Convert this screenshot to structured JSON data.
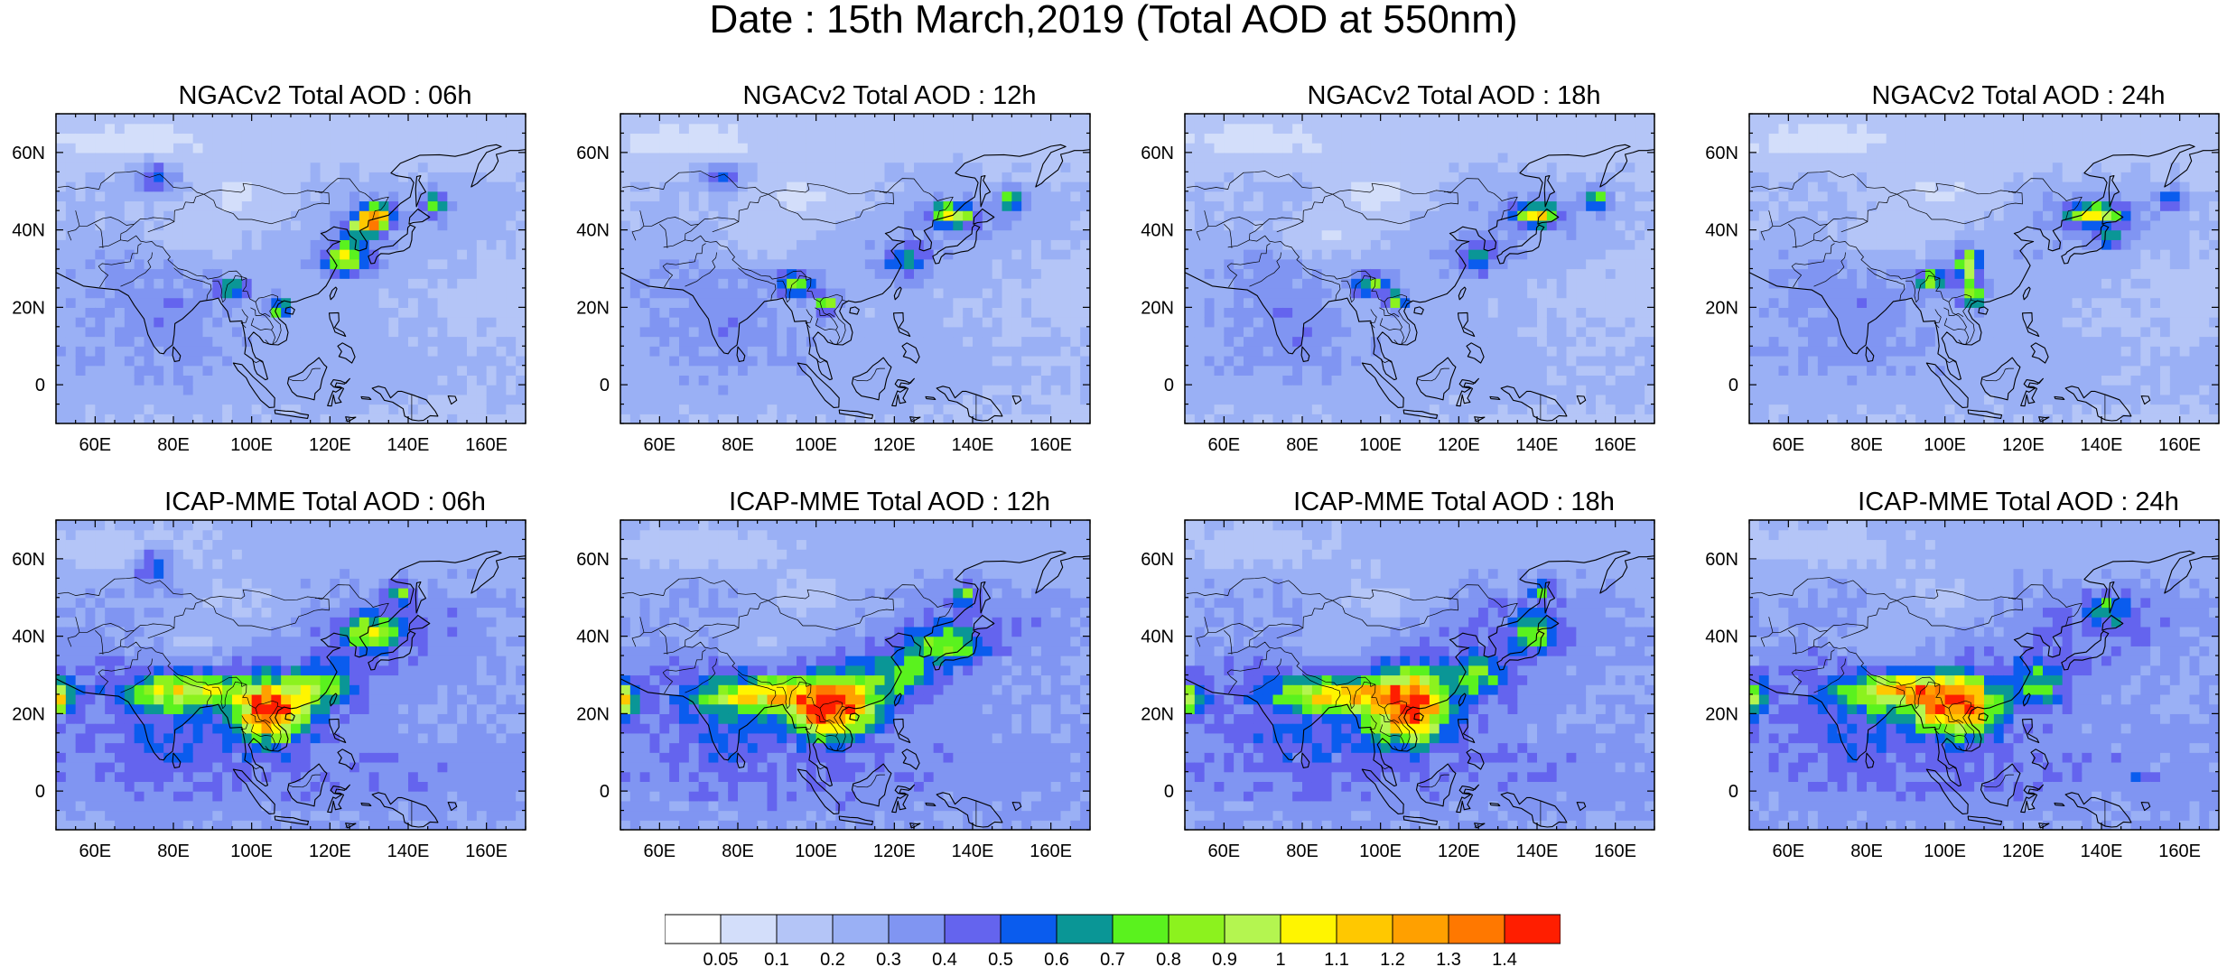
{
  "figure": {
    "title": "Date : 15th March,2019 (Total AOD at 550nm)"
  },
  "panels": [
    {
      "title": "NGACv2 Total AOD : 06h",
      "model": "NGACv2",
      "lead": "06h",
      "hotspots": [
        [
          132,
          44,
          1.05,
          3,
          2
        ],
        [
          129,
          41,
          0.95,
          3,
          2
        ],
        [
          124,
          33,
          0.85,
          4,
          3
        ],
        [
          147,
          47,
          0.75,
          2,
          2
        ],
        [
          107,
          20,
          0.8,
          2,
          2
        ],
        [
          95,
          25,
          0.6,
          3,
          2
        ],
        [
          75,
          54,
          0.5,
          4,
          3
        ]
      ]
    },
    {
      "title": "NGACv2 Total AOD : 12h",
      "model": "NGACv2",
      "lead": "12h",
      "hotspots": [
        [
          135,
          44,
          0.95,
          4,
          2
        ],
        [
          150,
          48,
          0.85,
          2,
          2
        ],
        [
          95,
          26,
          0.85,
          3,
          2
        ],
        [
          103,
          21,
          0.8,
          2,
          2
        ],
        [
          76,
          54,
          0.55,
          4,
          2
        ],
        [
          123,
          32,
          0.55,
          4,
          3
        ]
      ]
    },
    {
      "title": "NGACv2 Total AOD : 18h",
      "model": "NGACv2",
      "lead": "18h",
      "hotspots": [
        [
          140,
          44,
          1.0,
          4,
          2
        ],
        [
          155,
          48,
          0.8,
          2,
          2
        ],
        [
          98,
          26,
          0.8,
          3,
          2
        ],
        [
          104,
          22,
          0.75,
          2,
          2
        ],
        [
          125,
          33,
          0.55,
          4,
          3
        ]
      ]
    },
    {
      "title": "NGACv2 Total AOD : 24h",
      "model": "NGACv2",
      "lead": "24h",
      "hotspots": [
        [
          138,
          44,
          0.9,
          5,
          2
        ],
        [
          106,
          31,
          1.0,
          2,
          3
        ],
        [
          107,
          23,
          0.9,
          2,
          2
        ],
        [
          97,
          27,
          0.8,
          3,
          2
        ],
        [
          142,
          38,
          0.7,
          2,
          2
        ],
        [
          158,
          48,
          0.6,
          2,
          2
        ]
      ]
    },
    {
      "title": "ICAP-MME Total AOD : 06h",
      "model": "ICAP-MME",
      "lead": "06h",
      "hotspots": [
        [
          105,
          21,
          1.4,
          6,
          5
        ],
        [
          84,
          26,
          0.85,
          9,
          3
        ],
        [
          50,
          25,
          1.05,
          3,
          3
        ],
        [
          131,
          41,
          0.8,
          5,
          3
        ],
        [
          138,
          51,
          0.7,
          2,
          2
        ],
        [
          75,
          59,
          0.6,
          3,
          3
        ],
        [
          118,
          27,
          0.6,
          6,
          4
        ]
      ]
    },
    {
      "title": "ICAP-MME Total AOD : 12h",
      "model": "ICAP-MME",
      "lead": "12h",
      "hotspots": [
        [
          104,
          22,
          1.4,
          7,
          5
        ],
        [
          86,
          25,
          0.9,
          9,
          3
        ],
        [
          50,
          24,
          1.0,
          3,
          3
        ],
        [
          133,
          38,
          0.7,
          6,
          3
        ],
        [
          138,
          51,
          0.65,
          2,
          2
        ],
        [
          121,
          30,
          0.6,
          6,
          4
        ]
      ]
    },
    {
      "title": "ICAP-MME Total AOD : 18h",
      "model": "ICAP-MME",
      "lead": "18h",
      "hotspots": [
        [
          107,
          22,
          1.35,
          7,
          6
        ],
        [
          88,
          25,
          0.9,
          9,
          3
        ],
        [
          50,
          24,
          0.9,
          3,
          3
        ],
        [
          139,
          41,
          0.6,
          4,
          3
        ],
        [
          141,
          52,
          0.6,
          2,
          2
        ],
        [
          125,
          30,
          0.6,
          5,
          4
        ]
      ]
    },
    {
      "title": "ICAP-MME Total AOD : 24h",
      "model": "ICAP-MME",
      "lead": "24h",
      "hotspots": [
        [
          103,
          22,
          1.3,
          7,
          5
        ],
        [
          88,
          26,
          0.9,
          9,
          3
        ],
        [
          50,
          24,
          0.8,
          3,
          3
        ],
        [
          142,
          47,
          0.55,
          4,
          3
        ],
        [
          150,
          3,
          0.6,
          1,
          1
        ],
        [
          124,
          28,
          0.55,
          5,
          4
        ]
      ]
    }
  ],
  "axes": {
    "lon_range": [
      50,
      170
    ],
    "lat_range": [
      -10,
      70
    ],
    "lon_ticks": [
      60,
      80,
      100,
      120,
      140,
      160
    ],
    "lon_labels": [
      "60E",
      "80E",
      "100E",
      "120E",
      "140E",
      "160E"
    ],
    "lat_ticks": [
      0,
      20,
      40,
      60
    ],
    "lat_labels": [
      "0",
      "20N",
      "40N",
      "60N"
    ]
  },
  "colorbar": {
    "levels": [
      "0.05",
      "0.1",
      "0.2",
      "0.3",
      "0.4",
      "0.5",
      "0.6",
      "0.7",
      "0.8",
      "0.9",
      "1",
      "1.1",
      "1.2",
      "1.3",
      "1.4"
    ],
    "level_values": [
      0.05,
      0.1,
      0.2,
      0.3,
      0.4,
      0.5,
      0.6,
      0.7,
      0.8,
      0.9,
      1.0,
      1.1,
      1.2,
      1.3,
      1.4
    ],
    "colors": [
      "#ffffff",
      "#d3defa",
      "#b4c5f7",
      "#9ab0f5",
      "#8095f2",
      "#6464ee",
      "#0a5cee",
      "#0a9696",
      "#5af21e",
      "#8cf21e",
      "#b4f550",
      "#fff500",
      "#ffc800",
      "#ffa000",
      "#ff7800",
      "#ff1e00"
    ]
  }
}
